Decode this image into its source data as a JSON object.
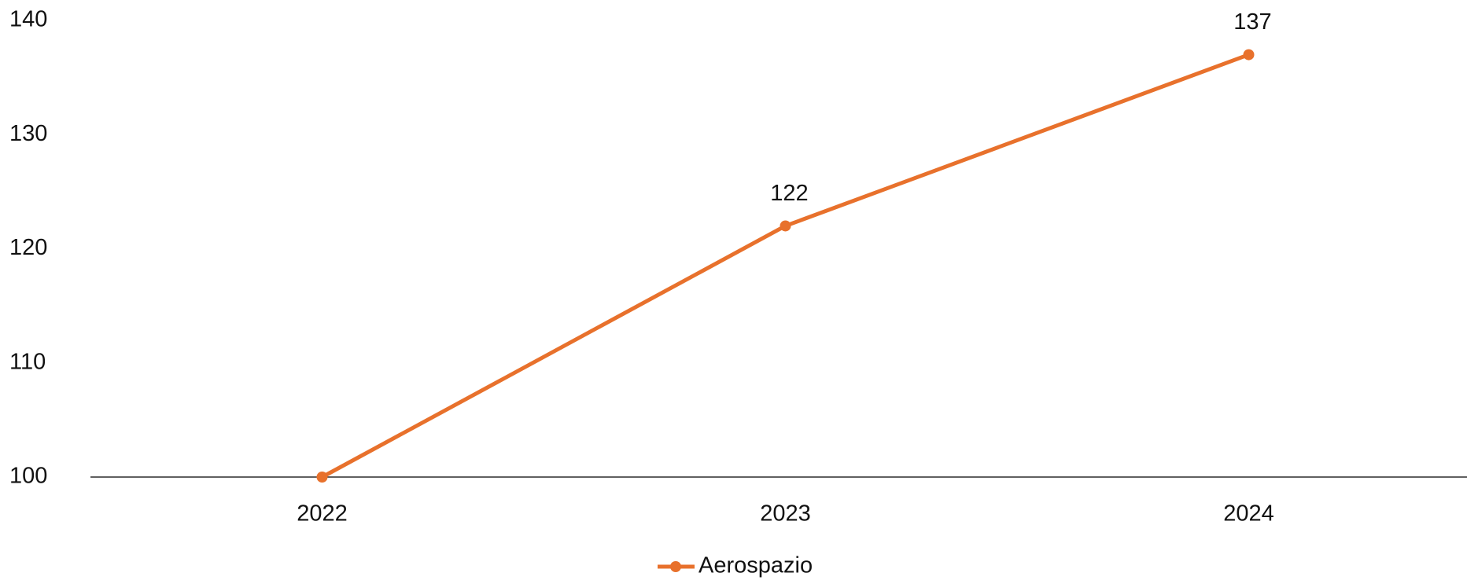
{
  "chart_data": {
    "type": "line",
    "categories": [
      "2022",
      "2023",
      "2024"
    ],
    "series": [
      {
        "name": "Aerospazio",
        "color": "#e8712c",
        "values": [
          100,
          122,
          137
        ],
        "value_labels": [
          null,
          "122",
          "137"
        ]
      }
    ],
    "ylim": [
      100,
      140
    ],
    "yticks": [
      100,
      110,
      120,
      130,
      140
    ],
    "grid": false,
    "legend": "bottom"
  }
}
